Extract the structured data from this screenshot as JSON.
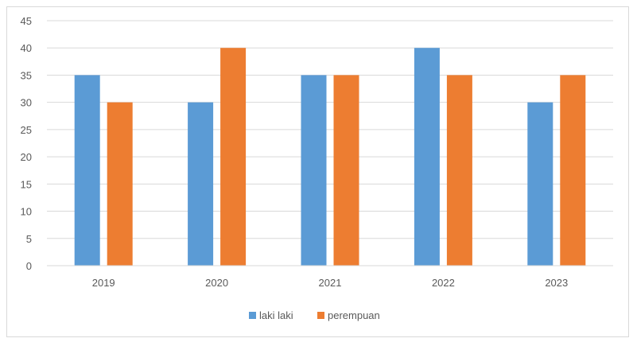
{
  "chart_data": {
    "type": "bar",
    "categories": [
      "2019",
      "2020",
      "2021",
      "2022",
      "2023"
    ],
    "series": [
      {
        "name": "laki laki",
        "values": [
          35,
          30,
          35,
          40,
          30
        ],
        "color": "#5b9bd5"
      },
      {
        "name": "perempuan",
        "values": [
          30,
          40,
          35,
          35,
          35
        ],
        "color": "#ed7d31"
      }
    ],
    "ylim": [
      0,
      45
    ],
    "yticks": [
      0,
      5,
      10,
      15,
      20,
      25,
      30,
      35,
      40,
      45
    ],
    "grid": true,
    "legend_position": "bottom"
  }
}
